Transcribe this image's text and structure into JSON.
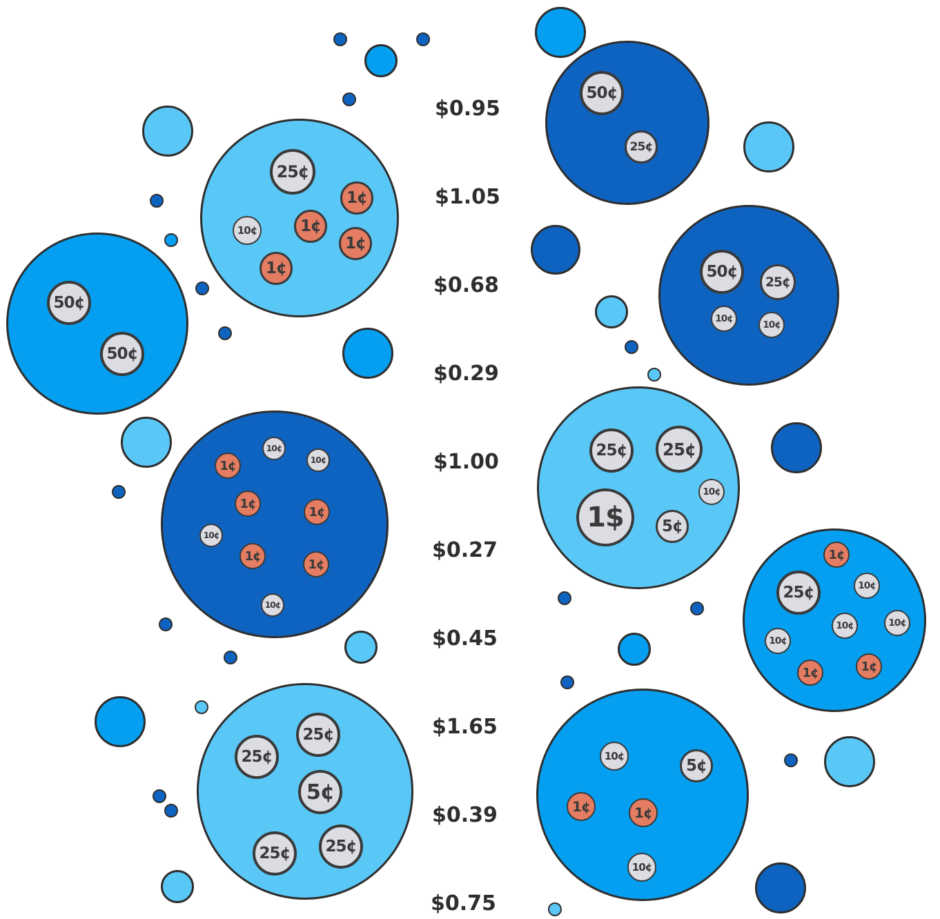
{
  "colors": {
    "dark": "#0f63c0",
    "medium": "#049ff0",
    "light": "#5ac8f7",
    "silver_coin": "#dcdde3",
    "copper_coin": "#e57d62",
    "outline": "#2e2e2e"
  },
  "amounts": [
    "$0.95",
    "$1.05",
    "$0.68",
    "$0.29",
    "$1.00",
    "$0.27",
    "$0.45",
    "$1.65",
    "$0.39",
    "$0.75"
  ],
  "bubble_sets": [
    {
      "id": "set-left-1",
      "color": "light",
      "coins": [
        "25¢",
        "1¢",
        "1¢",
        "1¢",
        "10¢",
        "1¢"
      ]
    },
    {
      "id": "set-left-2",
      "color": "medium",
      "coins": [
        "50¢",
        "50¢"
      ]
    },
    {
      "id": "set-left-3",
      "color": "dark",
      "coins": [
        "1¢",
        "10¢",
        "10¢",
        "1¢",
        "1¢",
        "10¢",
        "1¢",
        "1¢",
        "10¢"
      ]
    },
    {
      "id": "set-left-4",
      "color": "light",
      "coins": [
        "25¢",
        "25¢",
        "5¢",
        "25¢",
        "25¢"
      ]
    },
    {
      "id": "set-right-1",
      "color": "dark",
      "coins": [
        "50¢",
        "25¢"
      ]
    },
    {
      "id": "set-right-2",
      "color": "dark",
      "coins": [
        "50¢",
        "25¢",
        "10¢",
        "10¢"
      ]
    },
    {
      "id": "set-right-3",
      "color": "light",
      "coins": [
        "25¢",
        "25¢",
        "1$",
        "10¢",
        "5¢"
      ]
    },
    {
      "id": "set-right-4",
      "color": "medium",
      "coins": [
        "1¢",
        "25¢",
        "10¢",
        "10¢",
        "10¢",
        "10¢",
        "1¢",
        "1¢"
      ]
    },
    {
      "id": "set-right-5",
      "color": "medium",
      "coins": [
        "10¢",
        "5¢",
        "1¢",
        "1¢",
        "10¢"
      ]
    }
  ]
}
